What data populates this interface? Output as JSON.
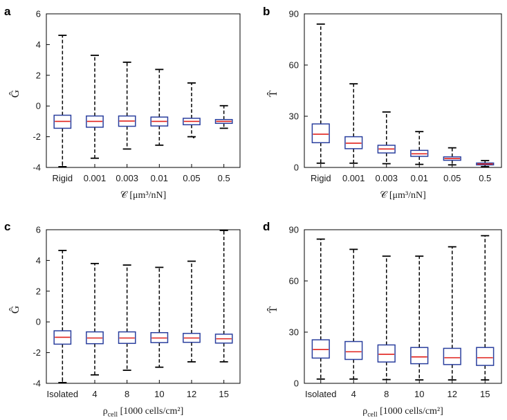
{
  "colors": {
    "box": "#2a3f9e",
    "median": "#e0201b",
    "whisker": "#000000",
    "frame": "#000000",
    "background": "#ffffff"
  },
  "chart_data": [
    {
      "type": "boxplot",
      "panel_letter": "a",
      "ylabel": "Ĝ",
      "xlabel_main": "𝒞 [μm³/nN]",
      "xlabel_sub": "",
      "xlabel_tail": "",
      "ylim": [
        -4,
        6
      ],
      "yticks": [
        -4,
        -2,
        0,
        2,
        4,
        6
      ],
      "ytick_labels": [
        "-4",
        "-2",
        "0",
        "2",
        "4",
        "6"
      ],
      "categories": [
        "Rigid",
        "0.001",
        "0.003",
        "0.01",
        "0.05",
        "0.5"
      ],
      "boxes": [
        {
          "min": -3.95,
          "q1": -1.45,
          "median": -1.0,
          "q3": -0.6,
          "max": 4.6,
          "outliers": []
        },
        {
          "min": -3.4,
          "q1": -1.38,
          "median": -1.0,
          "q3": -0.65,
          "max": 3.3,
          "outliers": []
        },
        {
          "min": -2.8,
          "q1": -1.32,
          "median": -0.98,
          "q3": -0.65,
          "max": 2.85,
          "outliers": []
        },
        {
          "min": -2.55,
          "q1": -1.3,
          "median": -1.0,
          "q3": -0.72,
          "max": 2.38,
          "outliers": []
        },
        {
          "min": -2.0,
          "q1": -1.22,
          "median": -1.0,
          "q3": -0.8,
          "max": 1.5,
          "outliers": [
            -2.05
          ]
        },
        {
          "min": -1.45,
          "q1": -1.13,
          "median": -1.0,
          "q3": -0.88,
          "max": 0.02,
          "outliers": []
        }
      ]
    },
    {
      "type": "boxplot",
      "panel_letter": "b",
      "ylabel": "T̂",
      "xlabel_main": "𝒞 [μm³/nN]",
      "xlabel_sub": "",
      "xlabel_tail": "",
      "ylim": [
        0,
        90
      ],
      "yticks": [
        0,
        30,
        60,
        90
      ],
      "ytick_labels": [
        "0",
        "30",
        "60",
        "90"
      ],
      "categories": [
        "Rigid",
        "0.001",
        "0.003",
        "0.01",
        "0.05",
        "0.5"
      ],
      "boxes": [
        {
          "min": 2.5,
          "q1": 14.5,
          "median": 19.5,
          "q3": 25.5,
          "max": 84,
          "outliers": []
        },
        {
          "min": 2.5,
          "q1": 11.0,
          "median": 14.2,
          "q3": 18.0,
          "max": 49,
          "outliers": []
        },
        {
          "min": 2.2,
          "q1": 8.5,
          "median": 10.8,
          "q3": 13.0,
          "max": 32.5,
          "outliers": []
        },
        {
          "min": 1.8,
          "q1": 6.5,
          "median": 8.0,
          "q3": 10.0,
          "max": 21,
          "outliers": []
        },
        {
          "min": 1.5,
          "q1": 4.2,
          "median": 5.2,
          "q3": 6.2,
          "max": 11.5,
          "outliers": []
        },
        {
          "min": 0.5,
          "q1": 1.5,
          "median": 2.0,
          "q3": 2.6,
          "max": 4.0,
          "outliers": []
        }
      ]
    },
    {
      "type": "boxplot",
      "panel_letter": "c",
      "ylabel": "Ĝ",
      "xlabel_main": "ρ",
      "xlabel_sub": "cell",
      "xlabel_tail": " [1000 cells/cm²]",
      "ylim": [
        -4,
        6
      ],
      "yticks": [
        -4,
        -2,
        0,
        2,
        4,
        6
      ],
      "ytick_labels": [
        "-4",
        "-2",
        "0",
        "2",
        "4",
        "6"
      ],
      "categories": [
        "Isolated",
        "4",
        "8",
        "10",
        "12",
        "15"
      ],
      "boxes": [
        {
          "min": -3.95,
          "q1": -1.45,
          "median": -1.0,
          "q3": -0.58,
          "max": 4.65,
          "outliers": []
        },
        {
          "min": -3.45,
          "q1": -1.42,
          "median": -1.05,
          "q3": -0.65,
          "max": 3.8,
          "outliers": []
        },
        {
          "min": -3.15,
          "q1": -1.4,
          "median": -1.05,
          "q3": -0.65,
          "max": 3.7,
          "outliers": []
        },
        {
          "min": -2.95,
          "q1": -1.35,
          "median": -1.05,
          "q3": -0.7,
          "max": 3.55,
          "outliers": []
        },
        {
          "min": -2.6,
          "q1": -1.33,
          "median": -1.05,
          "q3": -0.75,
          "max": 3.95,
          "outliers": []
        },
        {
          "min": -2.6,
          "q1": -1.38,
          "median": -1.1,
          "q3": -0.8,
          "max": 5.95,
          "outliers": []
        }
      ]
    },
    {
      "type": "boxplot",
      "panel_letter": "d",
      "ylabel": "T̂",
      "xlabel_main": "ρ",
      "xlabel_sub": "cell",
      "xlabel_tail": " [1000 cells/cm²]",
      "ylim": [
        0,
        90
      ],
      "yticks": [
        0,
        30,
        60,
        90
      ],
      "ytick_labels": [
        "0",
        "30",
        "60",
        "90"
      ],
      "categories": [
        "Isolated",
        "4",
        "8",
        "10",
        "12",
        "15"
      ],
      "boxes": [
        {
          "min": 2.5,
          "q1": 14.8,
          "median": 19.8,
          "q3": 25.5,
          "max": 84.5,
          "outliers": []
        },
        {
          "min": 2.5,
          "q1": 14.0,
          "median": 18.5,
          "q3": 24.5,
          "max": 78.5,
          "outliers": []
        },
        {
          "min": 2.2,
          "q1": 12.5,
          "median": 17.0,
          "q3": 22.5,
          "max": 74.5,
          "outliers": []
        },
        {
          "min": 2.0,
          "q1": 11.5,
          "median": 15.5,
          "q3": 21.0,
          "max": 74.5,
          "outliers": []
        },
        {
          "min": 2.0,
          "q1": 11.0,
          "median": 15.0,
          "q3": 20.5,
          "max": 80,
          "outliers": []
        },
        {
          "min": 2.0,
          "q1": 10.5,
          "median": 15.0,
          "q3": 21.0,
          "max": 86.5,
          "outliers": []
        }
      ]
    }
  ]
}
